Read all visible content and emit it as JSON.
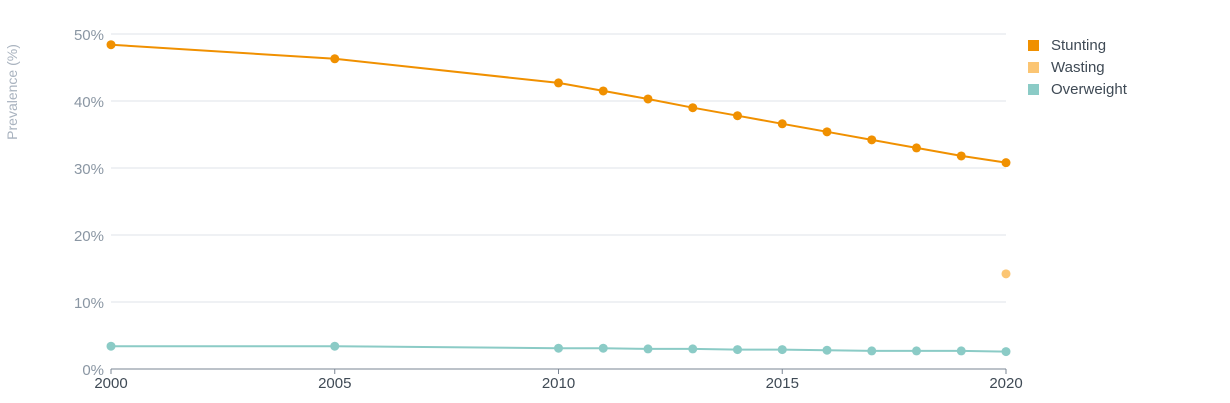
{
  "chart_data": {
    "type": "line",
    "title": "",
    "xlabel": "",
    "ylabel": "Prevalence (%)",
    "xlim": [
      2000,
      2020
    ],
    "ylim": [
      0,
      50
    ],
    "xticks": [
      2000,
      2005,
      2010,
      2015,
      2020
    ],
    "xtick_labels": [
      "2000",
      "2005",
      "2010",
      "2015",
      "2020"
    ],
    "yticks": [
      0,
      10,
      20,
      30,
      40,
      50
    ],
    "ytick_labels": [
      "0%",
      "10%",
      "20%",
      "30%",
      "40%",
      "50%"
    ],
    "grid": true,
    "legend_position": "top-right",
    "series": [
      {
        "name": "Stunting",
        "color": "#f09000",
        "points": [
          [
            2000,
            48.4
          ],
          [
            2005,
            46.3
          ],
          [
            2010,
            42.7
          ],
          [
            2011,
            41.5
          ],
          [
            2012,
            40.3
          ],
          [
            2013,
            39.0
          ],
          [
            2014,
            37.8
          ],
          [
            2015,
            36.6
          ],
          [
            2016,
            35.4
          ],
          [
            2017,
            34.2
          ],
          [
            2018,
            33.0
          ],
          [
            2019,
            31.8
          ],
          [
            2020,
            30.8
          ]
        ]
      },
      {
        "name": "Wasting",
        "color": "#fbc573",
        "points": [
          [
            2020,
            14.2
          ]
        ]
      },
      {
        "name": "Overweight",
        "color": "#8bcbc6",
        "points": [
          [
            2000,
            3.4
          ],
          [
            2005,
            3.4
          ],
          [
            2010,
            3.1
          ],
          [
            2011,
            3.1
          ],
          [
            2012,
            3.0
          ],
          [
            2013,
            3.0
          ],
          [
            2014,
            2.9
          ],
          [
            2015,
            2.9
          ],
          [
            2016,
            2.8
          ],
          [
            2017,
            2.7
          ],
          [
            2018,
            2.7
          ],
          [
            2019,
            2.7
          ],
          [
            2020,
            2.6
          ]
        ]
      }
    ]
  }
}
